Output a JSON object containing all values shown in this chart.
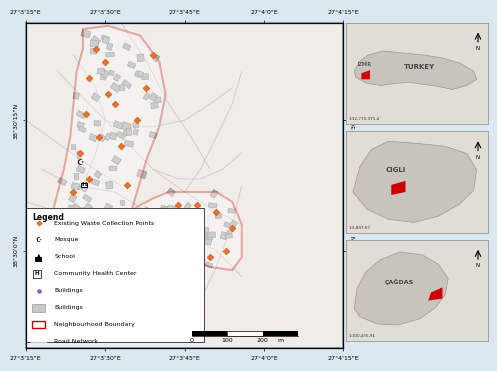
{
  "fig_bg": "#dce8f0",
  "map_bg": "#f0ede8",
  "outer_border_color": "#7fa8c8",
  "outer_border_lw": 1.5,
  "x_ticks_labels": [
    "27°3'15\"E",
    "27°3'30\"E",
    "27°3'45\"E",
    "27°4'0\"E",
    "27°4'15\"E"
  ],
  "x_ticks_pos": [
    0.0,
    0.25,
    0.5,
    0.75,
    1.0
  ],
  "y_ticks_labels": [
    "38°30'0\"N",
    "38°30'15\"N"
  ],
  "y_ticks_pos": [
    0.3,
    0.7
  ],
  "road_color": "#cccccc",
  "road_lw": 0.6,
  "neighbourhood_color": "#cc0000",
  "neighbourhood_lw": 1.5,
  "building_fill": "#b8b8b8",
  "building_edge": "#888888",
  "building_lw": 0.4,
  "waste_point_color": "#e87030",
  "waste_point_edge": "#cc5500",
  "inset_bg": "#e0ddd6",
  "inset_border": "#888888",
  "scalebar_label": "0   100   200\n          m"
}
